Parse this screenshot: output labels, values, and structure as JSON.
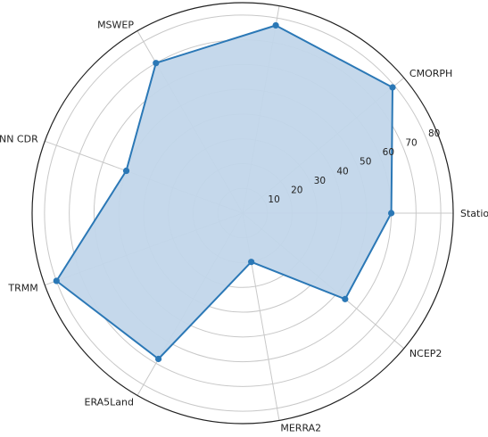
{
  "chart_data": {
    "type": "radar",
    "title": "",
    "categories": [
      "Station",
      "CMORPH",
      "",
      "MSWEP",
      "PERSIANN CDR",
      "TRMM",
      "ERA5Land",
      "MERRA2",
      "NCEP2"
    ],
    "series": [
      {
        "values": [
          60,
          79,
          77,
          70,
          50,
          80,
          68,
          20,
          54
        ]
      }
    ],
    "radial_ticks": [
      10,
      20,
      30,
      40,
      50,
      60,
      70,
      80
    ],
    "rlim": [
      0,
      85
    ],
    "grid": true,
    "colors": {
      "line": "#2b78b6",
      "fill": "#c2d6ea",
      "grid": "#c8c8c8",
      "frame": "#222222"
    }
  }
}
